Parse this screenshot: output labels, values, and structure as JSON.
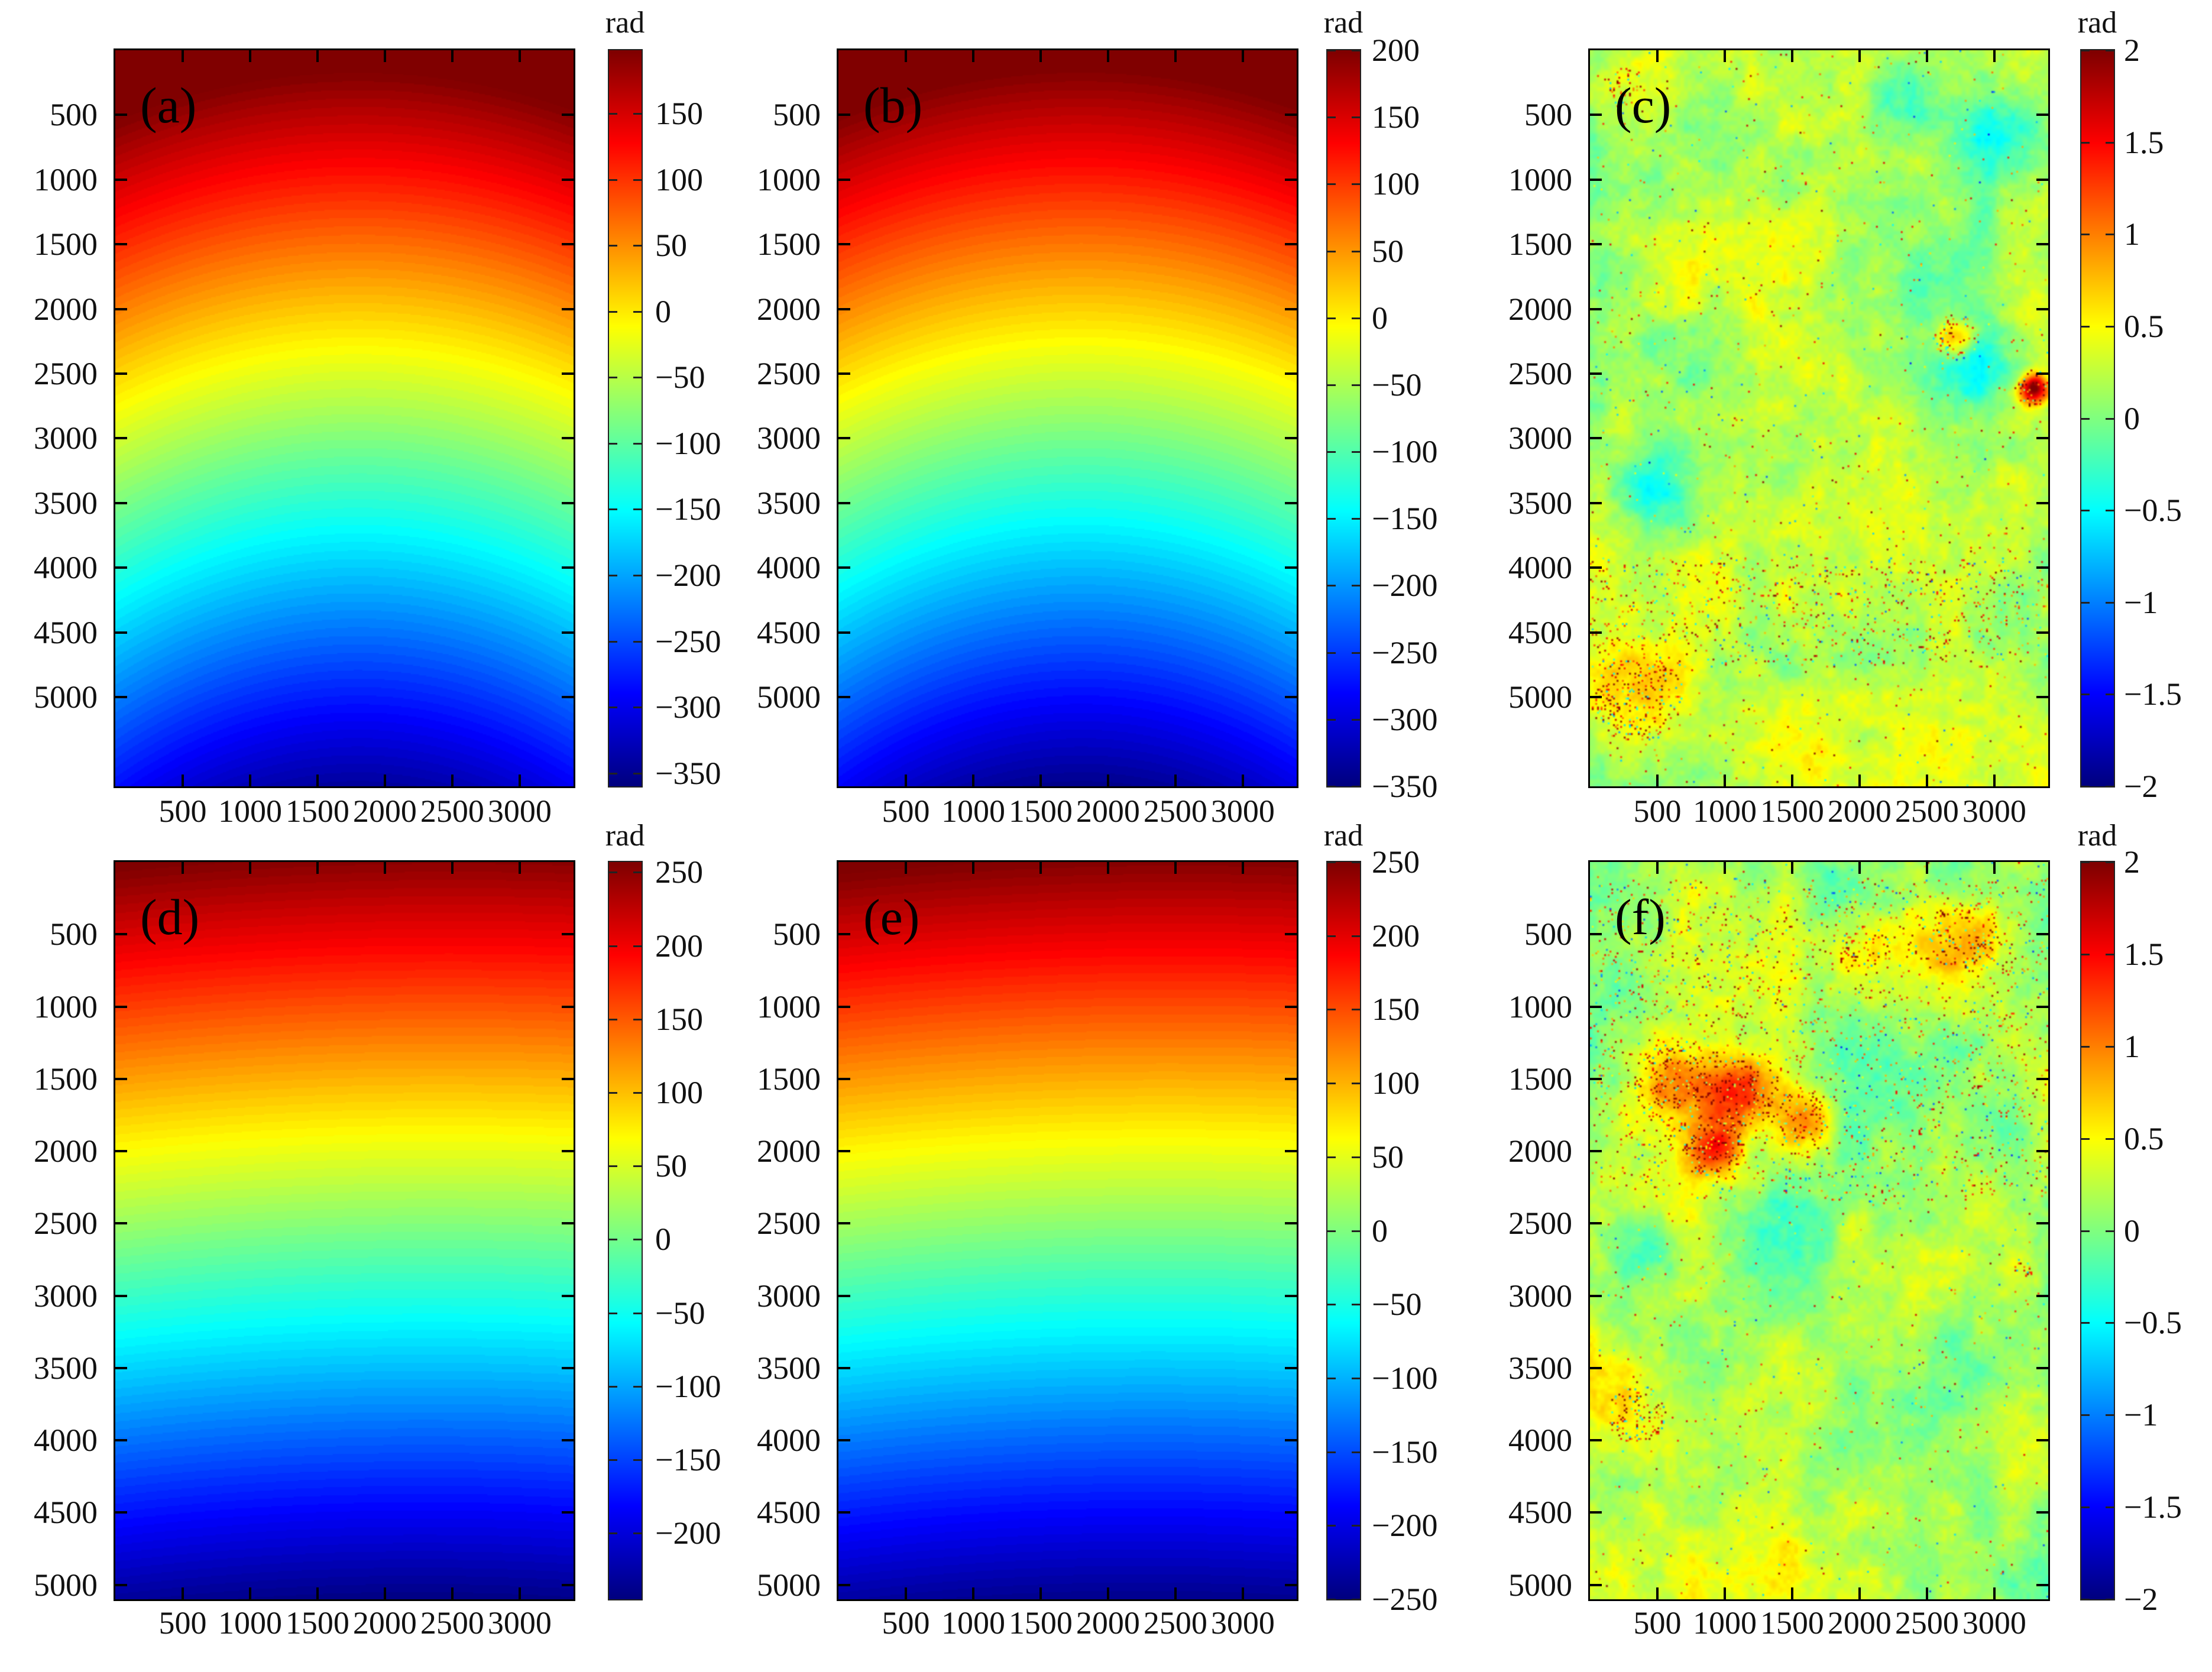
{
  "figure": {
    "unit_label": "rad",
    "panel_letters": [
      "(a)",
      "(b)",
      "(c)",
      "(d)",
      "(e)",
      "(f)"
    ]
  },
  "chart_data": [
    {
      "id": "a",
      "panel_label": "(a)",
      "type": "heatmap",
      "colormap": "jet",
      "x_axis": {
        "ticks": [
          500,
          1000,
          1500,
          2000,
          2500,
          3000
        ],
        "range": [
          0,
          3400
        ]
      },
      "y_axis": {
        "ticks": [
          500,
          1000,
          1500,
          2000,
          2500,
          3000,
          3500,
          4000,
          4500,
          5000
        ],
        "range": [
          0,
          5690
        ]
      },
      "colorbar": {
        "unit": "rad",
        "range": [
          -360,
          198
        ],
        "ticks": [
          150,
          100,
          50,
          0,
          -50,
          -100,
          -150,
          -200,
          -250,
          -300,
          -350
        ],
        "tick_labels": [
          "150",
          "100",
          "50",
          "0",
          "−50",
          "−100",
          "−150",
          "−200",
          "−250",
          "−300",
          "−350"
        ]
      },
      "field": {
        "model": "radial-phase",
        "center_u": 0.53,
        "center_v": 2.2,
        "x_weight": 1.0,
        "top_value": 215,
        "gradient": 560,
        "tilt": 0,
        "contour_step": 6.5
      },
      "description": "smooth unwrapped interferometric phase, concentric upward-bulging contours, +200 rad (red) at top to −350 rad (dark blue) at bottom"
    },
    {
      "id": "b",
      "panel_label": "(b)",
      "type": "heatmap",
      "colormap": "jet",
      "x_axis": {
        "ticks": [
          500,
          1000,
          1500,
          2000,
          2500,
          3000
        ],
        "range": [
          0,
          3400
        ]
      },
      "y_axis": {
        "ticks": [
          500,
          1000,
          1500,
          2000,
          2500,
          3000,
          3500,
          4000,
          4500,
          5000
        ],
        "range": [
          0,
          5690
        ]
      },
      "colorbar": {
        "unit": "rad",
        "range": [
          -350,
          200
        ],
        "ticks": [
          200,
          150,
          100,
          50,
          0,
          -50,
          -100,
          -150,
          -200,
          -250,
          -300,
          -350
        ],
        "tick_labels": [
          "200",
          "150",
          "100",
          "50",
          "0",
          "−50",
          "−100",
          "−150",
          "−200",
          "−250",
          "−300",
          "−350"
        ]
      },
      "field": {
        "model": "radial-phase",
        "center_u": 0.53,
        "center_v": 2.2,
        "x_weight": 1.0,
        "top_value": 215,
        "gradient": 560,
        "tilt": 0,
        "contour_step": 6.5
      },
      "description": "smooth unwrapped phase, nearly identical to panel (a)"
    },
    {
      "id": "c",
      "panel_label": "(c)",
      "type": "heatmap",
      "colormap": "jet",
      "x_axis": {
        "ticks": [
          500,
          1000,
          1500,
          2000,
          2500,
          3000
        ],
        "range": [
          0,
          3400
        ]
      },
      "y_axis": {
        "ticks": [
          500,
          1000,
          1500,
          2000,
          2500,
          3000,
          3500,
          4000,
          4500,
          5000
        ],
        "range": [
          0,
          5690
        ]
      },
      "colorbar": {
        "unit": "rad",
        "range": [
          -2,
          2
        ],
        "ticks": [
          2,
          1.5,
          1,
          0.5,
          0,
          -0.5,
          -1,
          -1.5,
          -2
        ],
        "tick_labels": [
          "2",
          "1.5",
          "1",
          "0.5",
          "0",
          "−0.5",
          "−1",
          "−1.5",
          "−2"
        ]
      },
      "field": {
        "model": "noise",
        "seed": 7,
        "base": 0.15,
        "amp": 1.0,
        "octaves": [
          [
            5,
            0.5
          ],
          [
            14,
            0.3
          ],
          [
            40,
            0.22
          ],
          [
            120,
            0.15
          ]
        ],
        "speckle_band": [
          0.69,
          0.84
        ],
        "speckle_rate": 0.007,
        "band_rate": 0.05,
        "blobs": [
          [
            0.08,
            0.05,
            0.12,
            0.35
          ],
          [
            0.88,
            0.12,
            0.1,
            -0.55
          ],
          [
            0.7,
            0.06,
            0.08,
            -0.4
          ],
          [
            0.13,
            0.6,
            0.08,
            -0.7
          ],
          [
            0.83,
            0.43,
            0.1,
            -0.55
          ],
          [
            0.97,
            0.46,
            0.03,
            1.9
          ],
          [
            0.8,
            0.39,
            0.045,
            1.0
          ],
          [
            0.1,
            0.88,
            0.14,
            0.5
          ],
          [
            0.7,
            0.95,
            0.25,
            0.3
          ],
          [
            0.3,
            0.75,
            0.3,
            0.15
          ]
        ]
      },
      "description": "residual phase noise map, mostly green/yellow-green near 0 rad with cyan patches, dense orange speckle band near rows 4000–4500 and a red anomaly at the right edge"
    },
    {
      "id": "d",
      "panel_label": "(d)",
      "type": "heatmap",
      "colormap": "jet",
      "x_axis": {
        "ticks": [
          500,
          1000,
          1500,
          2000,
          2500,
          3000
        ],
        "range": [
          0,
          3400
        ]
      },
      "y_axis": {
        "ticks": [
          500,
          1000,
          1500,
          2000,
          2500,
          3000,
          3500,
          4000,
          4500,
          5000
        ],
        "range": [
          0,
          5100
        ]
      },
      "colorbar": {
        "unit": "rad",
        "range": [
          -245,
          257
        ],
        "ticks": [
          250,
          200,
          150,
          100,
          50,
          0,
          -50,
          -100,
          -150,
          -200
        ],
        "tick_labels": [
          "250",
          "200",
          "150",
          "100",
          "50",
          "0",
          "−50",
          "−100",
          "−150",
          "−200"
        ]
      },
      "field": {
        "model": "radial-phase",
        "center_u": 0.45,
        "center_v": 3.6,
        "x_weight": 0.55,
        "top_value": 252,
        "gradient": 495,
        "tilt": -12,
        "contour_step": 5.5
      },
      "description": "smooth unwrapped phase with nearly horizontal contours, +250 rad at top to about −240 rad at bottom"
    },
    {
      "id": "e",
      "panel_label": "(e)",
      "type": "heatmap",
      "colormap": "jet",
      "x_axis": {
        "ticks": [
          500,
          1000,
          1500,
          2000,
          2500,
          3000
        ],
        "range": [
          0,
          3400
        ]
      },
      "y_axis": {
        "ticks": [
          500,
          1000,
          1500,
          2000,
          2500,
          3000,
          3500,
          4000,
          4500,
          5000
        ],
        "range": [
          0,
          5100
        ]
      },
      "colorbar": {
        "unit": "rad",
        "range": [
          -250,
          250
        ],
        "ticks": [
          250,
          200,
          150,
          100,
          50,
          0,
          -50,
          -100,
          -150,
          -200,
          -250
        ],
        "tick_labels": [
          "250",
          "200",
          "150",
          "100",
          "50",
          "0",
          "−50",
          "−100",
          "−150",
          "−200",
          "−250"
        ]
      },
      "field": {
        "model": "radial-phase",
        "center_u": 0.45,
        "center_v": 3.6,
        "x_weight": 0.55,
        "top_value": 248,
        "gradient": 492,
        "tilt": -12,
        "contour_step": 5.5
      },
      "description": "smooth unwrapped phase, nearly identical to panel (d)"
    },
    {
      "id": "f",
      "panel_label": "(f)",
      "type": "heatmap",
      "colormap": "jet",
      "x_axis": {
        "ticks": [
          500,
          1000,
          1500,
          2000,
          2500,
          3000
        ],
        "range": [
          0,
          3400
        ]
      },
      "y_axis": {
        "ticks": [
          500,
          1000,
          1500,
          2000,
          2500,
          3000,
          3500,
          4000,
          4500,
          5000
        ],
        "range": [
          0,
          5100
        ]
      },
      "colorbar": {
        "unit": "rad",
        "range": [
          -2,
          2
        ],
        "ticks": [
          2,
          1.5,
          1,
          0.5,
          0,
          -0.5,
          -1,
          -1.5,
          -2
        ],
        "tick_labels": [
          "2",
          "1.5",
          "1",
          "0.5",
          "0",
          "−0.5",
          "−1",
          "−1.5",
          "−2"
        ]
      },
      "field": {
        "model": "noise",
        "seed": 23,
        "base": 0.1,
        "amp": 1.0,
        "octaves": [
          [
            5,
            0.5
          ],
          [
            14,
            0.3
          ],
          [
            40,
            0.22
          ],
          [
            120,
            0.15
          ]
        ],
        "speckle_band": [
          0.02,
          0.46
        ],
        "speckle_rate": 0.006,
        "band_rate": 0.04,
        "blobs": [
          [
            0.2,
            0.3,
            0.1,
            0.9
          ],
          [
            0.33,
            0.31,
            0.07,
            1.1
          ],
          [
            0.27,
            0.39,
            0.06,
            1.0
          ],
          [
            0.46,
            0.35,
            0.06,
            0.8
          ],
          [
            0.6,
            0.12,
            0.09,
            0.45
          ],
          [
            0.82,
            0.1,
            0.1,
            0.55
          ],
          [
            0.95,
            0.55,
            0.06,
            0.35
          ],
          [
            0.55,
            0.04,
            0.08,
            -0.45
          ],
          [
            0.13,
            0.53,
            0.07,
            -0.45
          ],
          [
            0.43,
            0.47,
            0.09,
            -0.35
          ],
          [
            0.1,
            0.75,
            0.12,
            0.4
          ],
          [
            0.5,
            0.88,
            0.3,
            0.25
          ],
          [
            0.92,
            0.35,
            0.05,
            -0.4
          ]
        ]
      },
      "description": "residual phase noise map, green/cyan base near 0 rad with dense orange-brown speckle clusters in the upper half and yellow washes below"
    }
  ]
}
